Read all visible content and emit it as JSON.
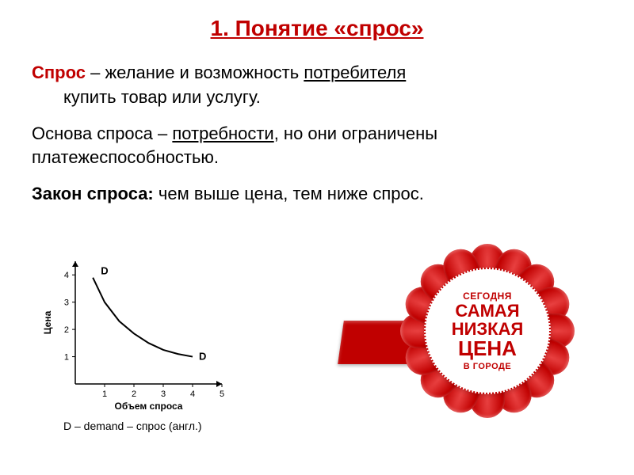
{
  "title": "1. Понятие «спрос»",
  "para1": {
    "term": "Спрос",
    "rest1": " – желание и возможность ",
    "ul1": "потребителя",
    "rest2": " купить товар или услугу."
  },
  "para2": {
    "t1": "Основа спроса – ",
    "ul": "потребности",
    "t2": ", но они ограничены платежеспособностью."
  },
  "para3": {
    "bold": "Закон спроса:",
    "rest": " чем выше цена, тем ниже спрос."
  },
  "chart": {
    "type": "line",
    "ylabel": "Цена",
    "xlabel": "Объем спроса",
    "series_label": "D",
    "yticks": [
      1,
      2,
      3,
      4
    ],
    "xticks": [
      1,
      2,
      3,
      4,
      5
    ],
    "curve": [
      {
        "x": 0.6,
        "y": 3.9
      },
      {
        "x": 1.0,
        "y": 3.0
      },
      {
        "x": 1.5,
        "y": 2.3
      },
      {
        "x": 2.0,
        "y": 1.85
      },
      {
        "x": 2.5,
        "y": 1.5
      },
      {
        "x": 3.0,
        "y": 1.25
      },
      {
        "x": 3.5,
        "y": 1.1
      },
      {
        "x": 4.0,
        "y": 1.0
      }
    ],
    "xlim": [
      0,
      5
    ],
    "ylim": [
      0,
      4.5
    ],
    "axis_color": "#000000",
    "line_color": "#000000",
    "line_width": 2,
    "tick_fontsize": 11,
    "label_fontsize": 12
  },
  "chart_note": "D – demand – спрос (англ.)",
  "badge": {
    "line1": "СЕГОДНЯ",
    "line2": "САМАЯ",
    "line3": "НИЗКАЯ",
    "line4": "ЦЕНА",
    "line5": "В ГОРОДЕ",
    "petal_count": 16,
    "petal_color_light": "#e84040",
    "petal_color_dark": "#900000",
    "ribbon_color": "#c00000",
    "text_color": "#c00000",
    "disc_bg": "#ffffff"
  },
  "colors": {
    "accent": "#c00000",
    "text": "#000000",
    "background": "#ffffff"
  }
}
